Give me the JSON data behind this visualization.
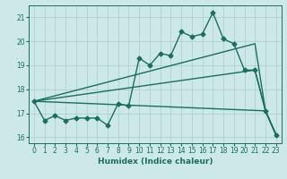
{
  "xlabel": "Humidex (Indice chaleur)",
  "ylabel": "",
  "bg_color": "#cce8e8",
  "grid_color": "#aacccc",
  "line_color": "#1a6e60",
  "xlim": [
    -0.5,
    23.5
  ],
  "ylim": [
    15.75,
    21.5
  ],
  "yticks": [
    16,
    17,
    18,
    19,
    20,
    21
  ],
  "xticks": [
    0,
    1,
    2,
    3,
    4,
    5,
    6,
    7,
    8,
    9,
    10,
    11,
    12,
    13,
    14,
    15,
    16,
    17,
    18,
    19,
    20,
    21,
    22,
    23
  ],
  "lines": [
    {
      "x": [
        0,
        1,
        2,
        3,
        4,
        5,
        6,
        7,
        8,
        9,
        10,
        11,
        12,
        13,
        14,
        15,
        16,
        17,
        18,
        19,
        20,
        21,
        22,
        23
      ],
      "y": [
        17.5,
        16.7,
        16.9,
        16.7,
        16.8,
        16.8,
        16.8,
        16.5,
        17.4,
        17.3,
        19.3,
        19.0,
        19.5,
        19.4,
        20.4,
        20.2,
        20.3,
        21.2,
        20.1,
        19.9,
        18.8,
        18.8,
        17.1,
        16.1
      ],
      "marker": "D",
      "markersize": 2.5,
      "linewidth": 1.0
    },
    {
      "x": [
        0,
        21,
        22,
        23
      ],
      "y": [
        17.5,
        19.9,
        17.1,
        16.1
      ],
      "marker": null,
      "markersize": 0,
      "linewidth": 1.0
    },
    {
      "x": [
        0,
        21,
        22,
        23
      ],
      "y": [
        17.5,
        18.8,
        17.1,
        16.1
      ],
      "marker": null,
      "markersize": 0,
      "linewidth": 1.0
    },
    {
      "x": [
        0,
        22,
        23
      ],
      "y": [
        17.5,
        17.1,
        16.1
      ],
      "marker": null,
      "markersize": 0,
      "linewidth": 1.0
    }
  ]
}
